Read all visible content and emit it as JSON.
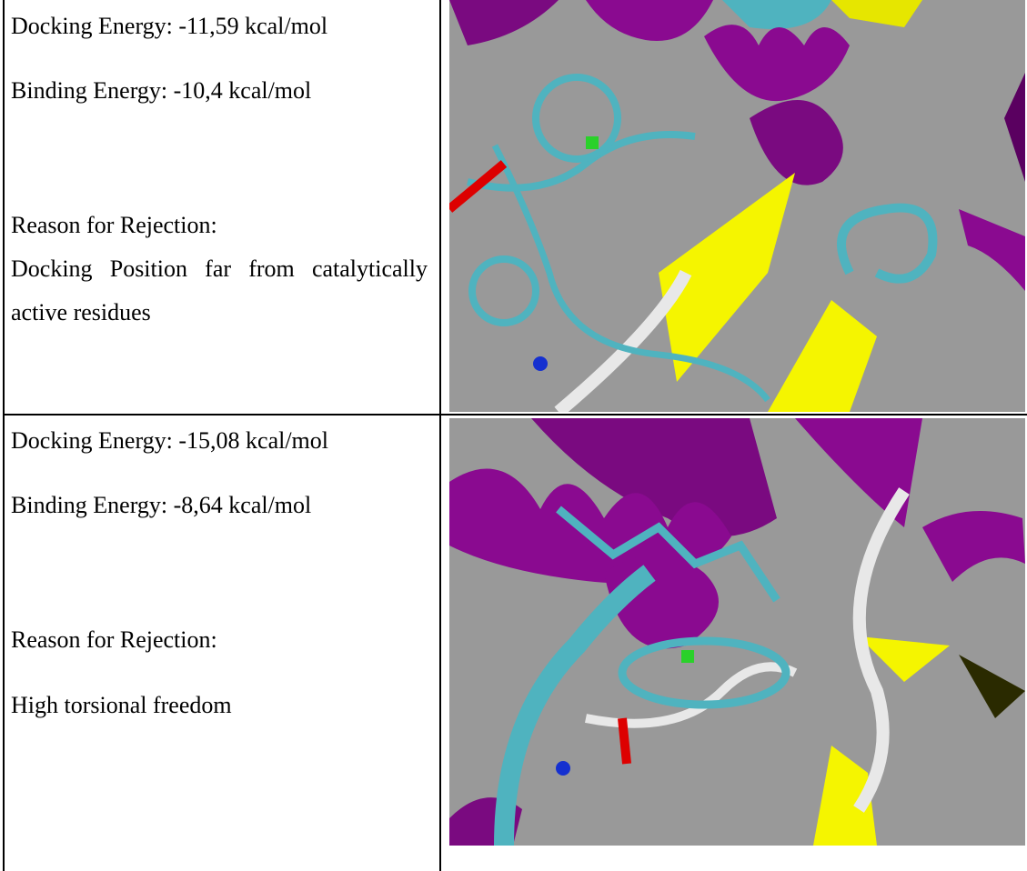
{
  "table": {
    "rows": [
      {
        "docking_energy": "Docking Energy: -11,59 kcal/mol",
        "binding_energy": "Binding Energy: -10,4 kcal/mol",
        "reason_label": "Reason for Rejection:",
        "reason": "Docking Position far from catalytically active residues"
      },
      {
        "docking_energy": "Docking Energy: -15,08 kcal/mol",
        "binding_energy": "Binding Energy: -8,64 kcal/mol",
        "reason_label": "Reason for Rejection:",
        "reason": "High torsional freedom"
      }
    ]
  }
}
